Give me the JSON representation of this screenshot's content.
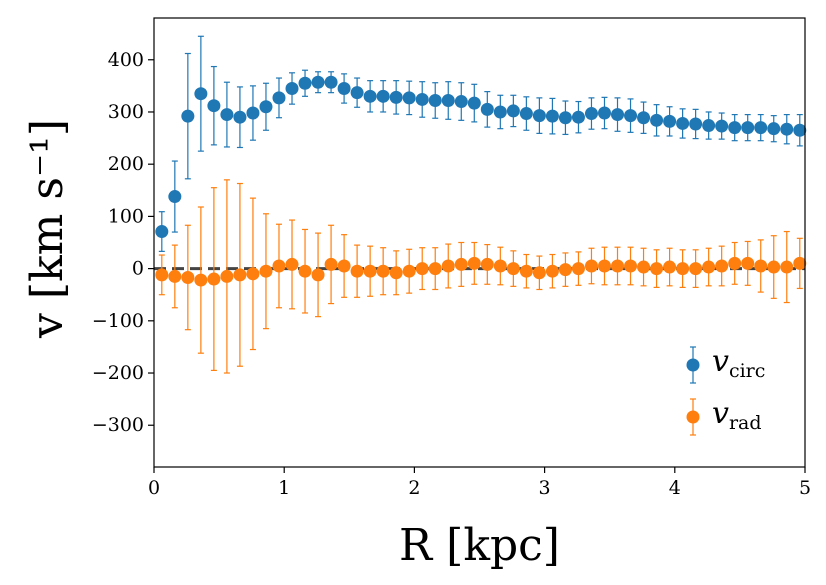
{
  "chart_data": {
    "type": "scatter",
    "title": "",
    "xlabel": "R [kpc]",
    "ylabel": "v [km s⁻¹]",
    "xlim": [
      0,
      5
    ],
    "ylim": [
      -380,
      480
    ],
    "xticks": [
      0,
      1,
      2,
      3,
      4,
      5
    ],
    "xtick_labels": [
      "0",
      "1",
      "2",
      "3",
      "4",
      "5"
    ],
    "yticks": [
      -300,
      -200,
      -100,
      0,
      100,
      200,
      300,
      400
    ],
    "ytick_labels": [
      "−300",
      "−200",
      "−100",
      "0",
      "100",
      "200",
      "300",
      "400"
    ],
    "reference_line": {
      "y": 0,
      "style": "dashed",
      "color": "#444444"
    },
    "legend": {
      "placement": "lower-right"
    },
    "series": [
      {
        "name": "v_circ",
        "legend_main": "v",
        "legend_sub": "circ",
        "color": "#1f77b4",
        "x": [
          0.06,
          0.16,
          0.26,
          0.36,
          0.46,
          0.56,
          0.66,
          0.76,
          0.86,
          0.96,
          1.06,
          1.16,
          1.26,
          1.36,
          1.46,
          1.56,
          1.66,
          1.76,
          1.86,
          1.96,
          2.06,
          2.16,
          2.26,
          2.36,
          2.46,
          2.56,
          2.66,
          2.76,
          2.86,
          2.96,
          3.06,
          3.16,
          3.26,
          3.36,
          3.46,
          3.56,
          3.66,
          3.76,
          3.86,
          3.96,
          4.06,
          4.16,
          4.26,
          4.36,
          4.46,
          4.56,
          4.66,
          4.76,
          4.86,
          4.96
        ],
        "y": [
          71,
          138,
          292,
          335,
          312,
          295,
          290,
          298,
          310,
          327,
          345,
          355,
          357,
          357,
          345,
          337,
          330,
          330,
          328,
          327,
          324,
          322,
          322,
          320,
          317,
          305,
          300,
          302,
          297,
          293,
          292,
          289,
          290,
          297,
          298,
          295,
          293,
          289,
          284,
          282,
          278,
          277,
          274,
          273,
          270,
          270,
          270,
          268,
          267,
          265
        ],
        "err": [
          38,
          68,
          120,
          110,
          75,
          62,
          58,
          52,
          45,
          38,
          30,
          25,
          20,
          20,
          28,
          28,
          30,
          30,
          32,
          32,
          34,
          34,
          36,
          36,
          36,
          34,
          32,
          30,
          32,
          34,
          34,
          32,
          30,
          30,
          30,
          32,
          32,
          30,
          30,
          28,
          28,
          28,
          26,
          25,
          25,
          25,
          25,
          25,
          28,
          30
        ]
      },
      {
        "name": "v_rad",
        "legend_main": "v",
        "legend_sub": "rad",
        "color": "#ff7f0e",
        "x": [
          0.06,
          0.16,
          0.26,
          0.36,
          0.46,
          0.56,
          0.66,
          0.76,
          0.86,
          0.96,
          1.06,
          1.16,
          1.26,
          1.36,
          1.46,
          1.56,
          1.66,
          1.76,
          1.86,
          1.96,
          2.06,
          2.16,
          2.26,
          2.36,
          2.46,
          2.56,
          2.66,
          2.76,
          2.86,
          2.96,
          3.06,
          3.16,
          3.26,
          3.36,
          3.46,
          3.56,
          3.66,
          3.76,
          3.86,
          3.96,
          4.06,
          4.16,
          4.26,
          4.36,
          4.46,
          4.56,
          4.66,
          4.76,
          4.86,
          4.96
        ],
        "y": [
          -12,
          -15,
          -17,
          -22,
          -20,
          -15,
          -12,
          -10,
          -5,
          5,
          8,
          -5,
          -12,
          8,
          5,
          -5,
          -5,
          -5,
          -8,
          -5,
          0,
          0,
          5,
          8,
          10,
          8,
          5,
          0,
          -5,
          -8,
          -5,
          -2,
          0,
          5,
          5,
          5,
          5,
          3,
          0,
          3,
          0,
          0,
          3,
          5,
          10,
          10,
          5,
          3,
          3,
          10
        ],
        "err": [
          38,
          60,
          100,
          140,
          175,
          185,
          175,
          145,
          110,
          80,
          85,
          80,
          80,
          75,
          60,
          50,
          48,
          45,
          42,
          42,
          40,
          40,
          42,
          42,
          40,
          38,
          36,
          34,
          32,
          32,
          32,
          32,
          32,
          34,
          36,
          36,
          36,
          36,
          36,
          36,
          36,
          36,
          36,
          38,
          40,
          42,
          50,
          60,
          68,
          48
        ]
      }
    ]
  }
}
